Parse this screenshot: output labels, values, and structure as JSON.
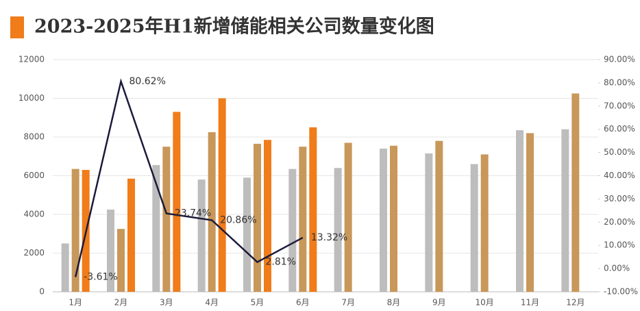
{
  "chart_data": {
    "type": "bar-line",
    "title": "2023-2025年H1新增储能相关公司数量变化图",
    "categories": [
      "1月",
      "2月",
      "3月",
      "4月",
      "5月",
      "6月",
      "7月",
      "8月",
      "9月",
      "10月",
      "11月",
      "12月"
    ],
    "series": [
      {
        "color": "#bdbdbd",
        "values": [
          2500,
          4250,
          6550,
          5800,
          5900,
          6350,
          6400,
          7400,
          7150,
          6600,
          8350,
          8400
        ]
      },
      {
        "color": "#c8975a",
        "values": [
          6350,
          3250,
          7500,
          8250,
          7650,
          7500,
          7700,
          7550,
          7800,
          7100,
          8200,
          10250
        ]
      },
      {
        "color": "#f07c1a",
        "values": [
          6300,
          5850,
          9300,
          10000,
          7850,
          8500,
          null,
          null,
          null,
          null,
          null,
          null
        ]
      },
      {
        "color": "#1a1a3a",
        "axis": "y2",
        "type": "line",
        "values": [
          -3.61,
          80.62,
          23.74,
          20.86,
          2.81,
          13.32,
          null,
          null,
          null,
          null,
          null,
          null
        ],
        "value_labels": [
          "-3.61%",
          "80.62%",
          "23.74%",
          "20.86%",
          "2.81%",
          "13.32%",
          null,
          null,
          null,
          null,
          null,
          null
        ]
      }
    ],
    "ylim": [
      0,
      12000
    ],
    "yticks": [
      0,
      2000,
      4000,
      6000,
      8000,
      10000,
      12000
    ],
    "y2lim": [
      -10,
      90
    ],
    "y2ticks": [
      {
        "value": -10,
        "label": "-10.00%"
      },
      {
        "value": 0,
        "label": "0.00%"
      },
      {
        "value": 10,
        "label": "10.00%"
      },
      {
        "value": 20,
        "label": "20.00%"
      },
      {
        "value": 30,
        "label": "30.00%"
      },
      {
        "value": 40,
        "label": "40.00%"
      },
      {
        "value": 50,
        "label": "50.00%"
      },
      {
        "value": 60,
        "label": "60.00%"
      },
      {
        "value": 70,
        "label": "70.00%"
      },
      {
        "value": 80,
        "label": "80.00%"
      },
      {
        "value": 90,
        "label": "90.00%"
      }
    ],
    "grid": true,
    "accent_color": "#f07c1a"
  }
}
